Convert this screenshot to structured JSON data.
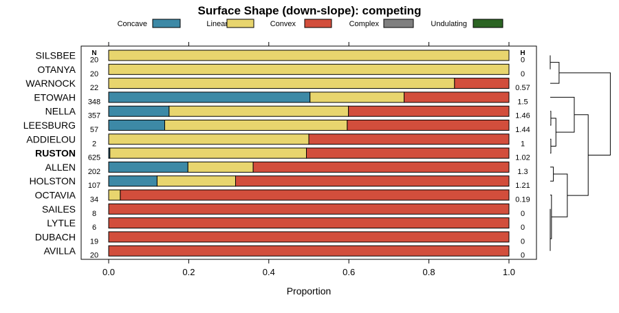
{
  "chart_data": {
    "type": "bar",
    "orientation": "horizontal",
    "stacked": true,
    "title": "Surface Shape (down-slope): competing",
    "xlabel": "Proportion",
    "ylabel": "",
    "xlim": [
      0,
      1
    ],
    "x_ticks": [
      0.0,
      0.2,
      0.4,
      0.6,
      0.8,
      1.0
    ],
    "x_tick_labels": [
      "0.0",
      "0.2",
      "0.4",
      "0.6",
      "0.8",
      "1.0"
    ],
    "grid": false,
    "legend_position": "top",
    "n_header": "N",
    "h_header": "H",
    "colors": {
      "Concave": "#3d89a6",
      "Linear": "#e8d56e",
      "Convex": "#d24e3c",
      "Complex": "#7f7f7f",
      "Undulating": "#2b6423"
    },
    "legend": [
      "Concave",
      "Linear",
      "Convex",
      "Complex",
      "Undulating"
    ],
    "categories": [
      "SILSBEE",
      "OTANYA",
      "WARNOCK",
      "ETOWAH",
      "NELLA",
      "LEESBURG",
      "ADDIELOU",
      "RUSTON",
      "ALLEN",
      "HOLSTON",
      "OCTAVIA",
      "SAILES",
      "LYTLE",
      "DUBACH",
      "AVILLA"
    ],
    "highlighted": "RUSTON",
    "n": [
      "20",
      "20",
      "22",
      "348",
      "357",
      "57",
      "2",
      "625",
      "202",
      "107",
      "34",
      "8",
      "6",
      "19",
      "20"
    ],
    "h": [
      "0",
      "0",
      "0.57",
      "1.5",
      "1.46",
      "1.44",
      "1",
      "1.02",
      "1.3",
      "1.21",
      "0.19",
      "0",
      "0",
      "0",
      "0"
    ],
    "series": [
      {
        "name": "Concave",
        "values": [
          0,
          0,
          0,
          0.503,
          0.151,
          0.14,
          0,
          0.003,
          0.198,
          0.121,
          0,
          0,
          0,
          0,
          0
        ]
      },
      {
        "name": "Linear",
        "values": [
          1,
          1,
          0.864,
          0.235,
          0.448,
          0.456,
          0.5,
          0.491,
          0.163,
          0.196,
          0.029,
          0,
          0,
          0,
          0
        ]
      },
      {
        "name": "Convex",
        "values": [
          0,
          0,
          0.136,
          0.262,
          0.401,
          0.404,
          0.5,
          0.506,
          0.639,
          0.683,
          0.971,
          1,
          1,
          1,
          1
        ]
      },
      {
        "name": "Complex",
        "values": [
          0,
          0,
          0,
          0,
          0,
          0,
          0,
          0,
          0,
          0,
          0,
          0,
          0,
          0,
          0
        ]
      },
      {
        "name": "Undulating",
        "values": [
          0,
          0,
          0,
          0,
          0,
          0,
          0,
          0,
          0,
          0,
          0,
          0,
          0,
          0,
          0
        ]
      }
    ],
    "dendrogram": {
      "leaf_order": [
        "SILSBEE",
        "OTANYA",
        "WARNOCK",
        "ETOWAH",
        "NELLA",
        "LEESBURG",
        "ADDIELOU",
        "RUSTON",
        "ALLEN",
        "HOLSTON",
        "OCTAVIA",
        "SAILES",
        "LYTLE",
        "DUBACH",
        "AVILLA"
      ],
      "merges": [
        {
          "a": [
            "SILSBEE"
          ],
          "b": [
            "OTANYA"
          ],
          "height": 0
        },
        {
          "a": [
            "SAILES"
          ],
          "b": [
            "LYTLE"
          ],
          "height": 0
        },
        {
          "a": [
            "SAILES",
            "LYTLE"
          ],
          "b": [
            "DUBACH"
          ],
          "height": 0
        },
        {
          "a": [
            "SAILES",
            "LYTLE",
            "DUBACH"
          ],
          "b": [
            "AVILLA"
          ],
          "height": 0
        },
        {
          "a": [
            "NELLA"
          ],
          "b": [
            "LEESBURG"
          ],
          "height": 0.01
        },
        {
          "a": [
            "ADDIELOU"
          ],
          "b": [
            "RUSTON"
          ],
          "height": 0.01
        },
        {
          "a": [
            "ALLEN"
          ],
          "b": [
            "HOLSTON"
          ],
          "height": 0.05
        },
        {
          "a": [
            "SAILES",
            "LYTLE",
            "DUBACH",
            "AVILLA"
          ],
          "b": [
            "OCTAVIA"
          ],
          "height": 0.02
        },
        {
          "a": [
            "NELLA",
            "LEESBURG"
          ],
          "b": [
            "ADDIELOU",
            "RUSTON"
          ],
          "height": 0.09
        },
        {
          "a": [
            "SILSBEE",
            "OTANYA"
          ],
          "b": [
            "WARNOCK"
          ],
          "height": 0.14
        },
        {
          "a": [
            "ETOWAH"
          ],
          "b": [
            "NELLA",
            "LEESBURG",
            "ADDIELOU",
            "RUSTON"
          ],
          "height": 0.38
        },
        {
          "a": [
            "OCTAVIA",
            "SAILES",
            "LYTLE",
            "DUBACH",
            "AVILLA"
          ],
          "b": [
            "ALLEN",
            "HOLSTON"
          ],
          "height": 0.27
        },
        {
          "a": [
            "ETOWAH",
            "NELLA",
            "LEESBURG",
            "ADDIELOU",
            "RUSTON"
          ],
          "b": [
            "ALLEN",
            "HOLSTON",
            "OCTAVIA",
            "SAILES",
            "LYTLE",
            "DUBACH",
            "AVILLA"
          ],
          "height": 0.6
        },
        {
          "a": [
            "SILSBEE",
            "OTANYA",
            "WARNOCK"
          ],
          "b": [
            "ETOWAH",
            "NELLA",
            "LEESBURG",
            "ADDIELOU",
            "RUSTON",
            "ALLEN",
            "HOLSTON",
            "OCTAVIA",
            "SAILES",
            "LYTLE",
            "DUBACH",
            "AVILLA"
          ],
          "height": 0.95
        }
      ]
    }
  }
}
